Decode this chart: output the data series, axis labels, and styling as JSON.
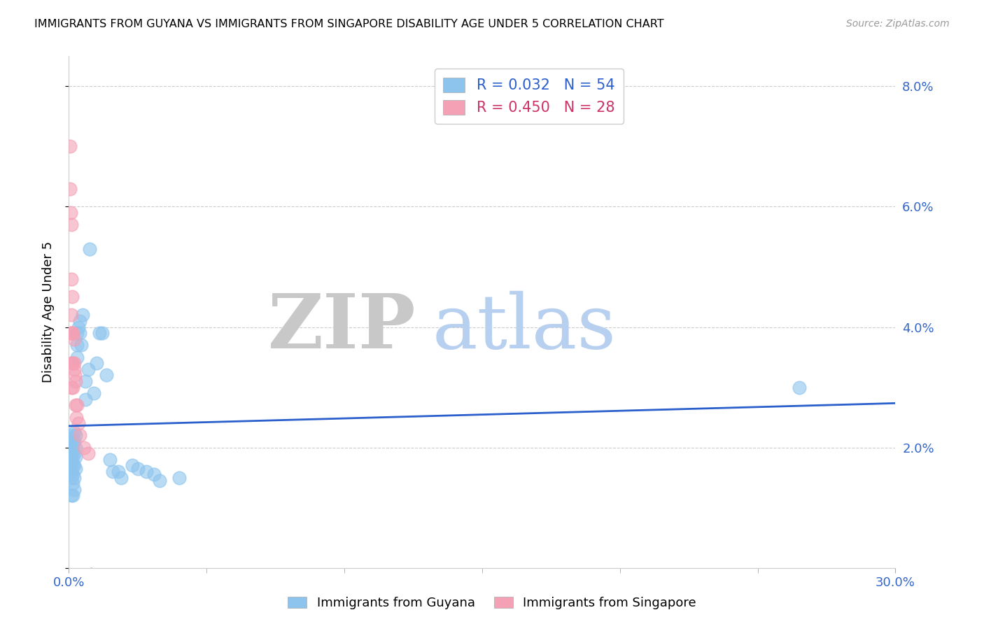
{
  "title": "IMMIGRANTS FROM GUYANA VS IMMIGRANTS FROM SINGAPORE DISABILITY AGE UNDER 5 CORRELATION CHART",
  "source": "Source: ZipAtlas.com",
  "ylabel": "Disability Age Under 5",
  "x_min": 0.0,
  "x_max": 0.3,
  "y_min": 0.0,
  "y_max": 0.085,
  "y_ticks": [
    0.0,
    0.02,
    0.04,
    0.06,
    0.08
  ],
  "y_tick_labels_right": [
    "",
    "2.0%",
    "4.0%",
    "6.0%",
    "8.0%"
  ],
  "guyana_color": "#8DC4EE",
  "singapore_color": "#F4A0B5",
  "guyana_R": 0.032,
  "guyana_N": 54,
  "singapore_R": 0.45,
  "singapore_N": 28,
  "legend_label_guyana": "Immigrants from Guyana",
  "legend_label_singapore": "Immigrants from Singapore",
  "trend_guyana_color": "#2B5FCC",
  "trend_singapore_color": "#CC3366",
  "watermark_zip": "ZIP",
  "watermark_atlas": "atlas",
  "watermark_zip_color": "#C8C8C8",
  "watermark_atlas_color": "#B8D0F0",
  "guyana_x": [
    0.0008,
    0.0008,
    0.001,
    0.001,
    0.001,
    0.001,
    0.001,
    0.001,
    0.0012,
    0.0015,
    0.0015,
    0.0015,
    0.0015,
    0.0015,
    0.0015,
    0.0015,
    0.002,
    0.002,
    0.002,
    0.002,
    0.002,
    0.002,
    0.0025,
    0.0025,
    0.0025,
    0.0025,
    0.003,
    0.003,
    0.003,
    0.0035,
    0.004,
    0.004,
    0.0045,
    0.005,
    0.006,
    0.006,
    0.007,
    0.0075,
    0.009,
    0.01,
    0.011,
    0.012,
    0.0135,
    0.015,
    0.016,
    0.018,
    0.019,
    0.023,
    0.025,
    0.028,
    0.031,
    0.033,
    0.04,
    0.265
  ],
  "guyana_y": [
    0.018,
    0.012,
    0.0215,
    0.02,
    0.019,
    0.0175,
    0.016,
    0.015,
    0.022,
    0.021,
    0.02,
    0.0185,
    0.017,
    0.0155,
    0.014,
    0.012,
    0.0225,
    0.021,
    0.019,
    0.017,
    0.015,
    0.013,
    0.022,
    0.02,
    0.0185,
    0.0165,
    0.039,
    0.037,
    0.035,
    0.04,
    0.041,
    0.039,
    0.037,
    0.042,
    0.031,
    0.028,
    0.033,
    0.053,
    0.029,
    0.034,
    0.039,
    0.039,
    0.032,
    0.018,
    0.016,
    0.016,
    0.015,
    0.017,
    0.0165,
    0.016,
    0.0155,
    0.0145,
    0.015,
    0.03
  ],
  "singapore_x": [
    0.0005,
    0.0005,
    0.0007,
    0.0008,
    0.0008,
    0.0008,
    0.0008,
    0.001,
    0.001,
    0.001,
    0.0012,
    0.0012,
    0.0012,
    0.0015,
    0.0015,
    0.0015,
    0.0018,
    0.002,
    0.002,
    0.0022,
    0.0025,
    0.0025,
    0.0028,
    0.003,
    0.0035,
    0.004,
    0.0055,
    0.007
  ],
  "singapore_y": [
    0.07,
    0.063,
    0.059,
    0.057,
    0.039,
    0.034,
    0.03,
    0.048,
    0.042,
    0.039,
    0.045,
    0.039,
    0.034,
    0.039,
    0.034,
    0.03,
    0.034,
    0.038,
    0.033,
    0.032,
    0.031,
    0.027,
    0.025,
    0.027,
    0.024,
    0.022,
    0.02,
    0.019
  ]
}
